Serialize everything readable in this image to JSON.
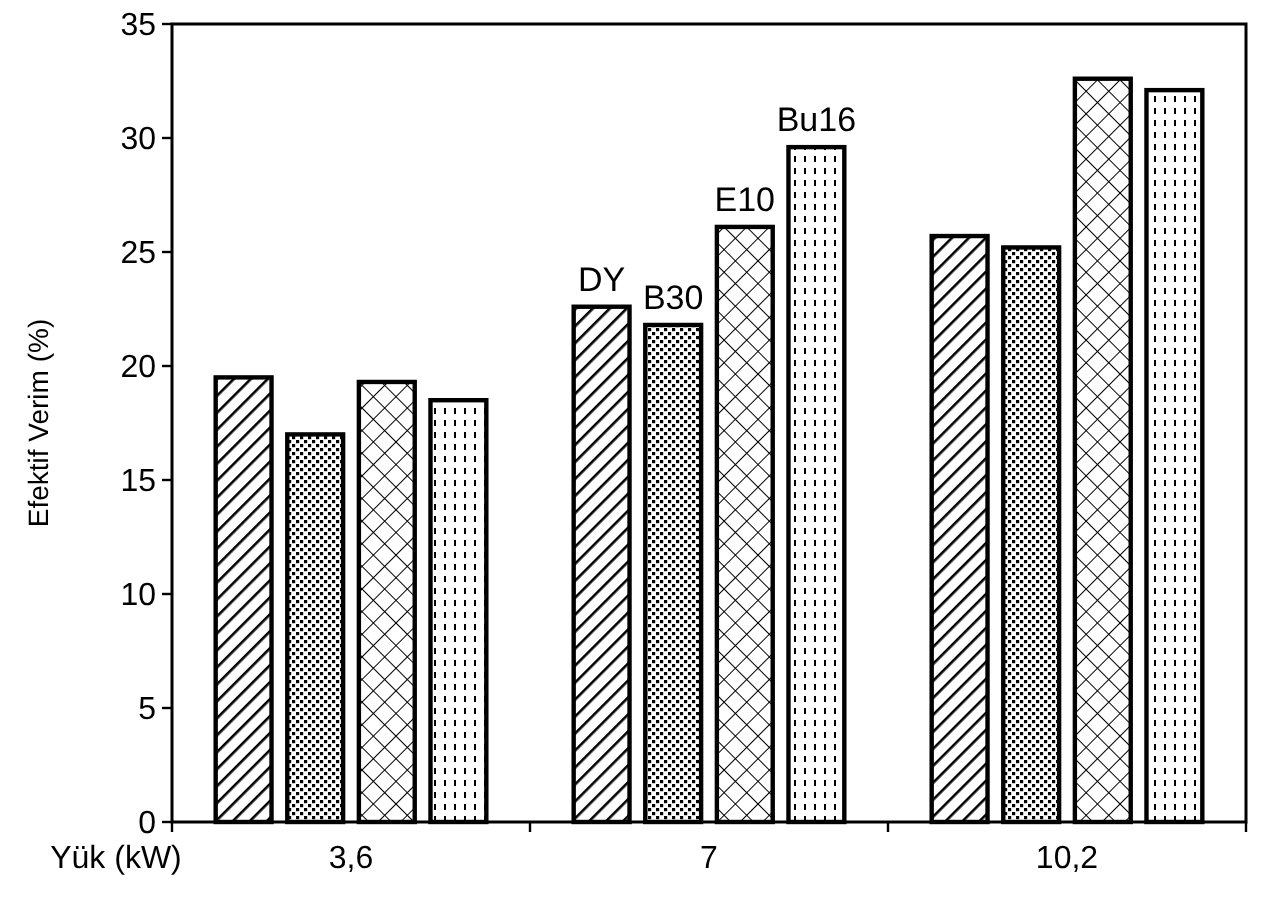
{
  "chart_data": {
    "type": "bar",
    "ylabel": "Efektif Verim (%)",
    "xlabel": "Yük (kW)",
    "categories": [
      "3,6",
      "7",
      "10,2"
    ],
    "series": [
      {
        "name": "DY",
        "color": "#000000",
        "values": [
          19.5,
          22.6,
          25.7
        ]
      },
      {
        "name": "B30",
        "color": "#000000",
        "values": [
          17,
          21.8,
          25.2
        ]
      },
      {
        "name": "E10",
        "color": "#000000",
        "values": [
          19.3,
          26.1,
          32.6
        ]
      },
      {
        "name": "Bu16",
        "color": "#000000",
        "values": [
          18.5,
          29.6,
          32.1
        ]
      }
    ],
    "ylim": [
      0,
      35
    ],
    "yticks": [
      0,
      5,
      10,
      15,
      20,
      25,
      30,
      35
    ],
    "grid": false,
    "legend": false
  }
}
